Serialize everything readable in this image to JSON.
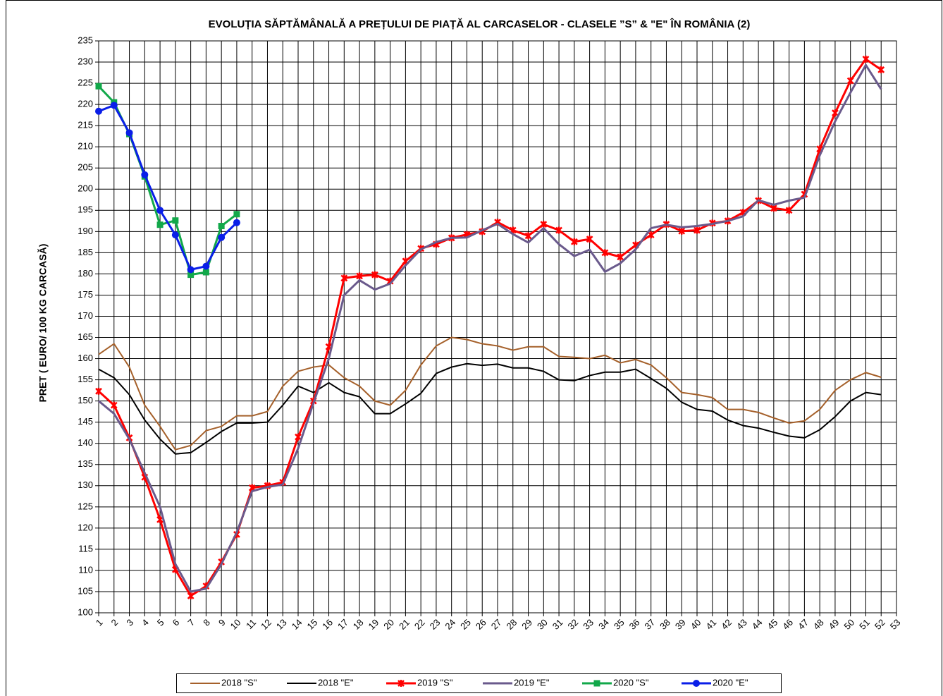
{
  "chart_data": {
    "type": "line",
    "title": "EVOLUȚIA SĂPTĂMÂNALĂ A PREȚULUI  DE PIAȚĂ  AL CARCASELOR  - CLASELE ”S” & \"E\"  ÎN ROMÂNIA (2)",
    "y_label": "PRET ( EURO/ 100 KG CARCASĂ)",
    "x": [
      1,
      2,
      3,
      4,
      5,
      6,
      7,
      8,
      9,
      10,
      11,
      12,
      13,
      14,
      15,
      16,
      17,
      18,
      19,
      20,
      21,
      22,
      23,
      24,
      25,
      26,
      27,
      28,
      29,
      30,
      31,
      32,
      33,
      34,
      35,
      36,
      37,
      38,
      39,
      40,
      41,
      42,
      43,
      44,
      45,
      46,
      47,
      48,
      49,
      50,
      51,
      52
    ],
    "xlim": [
      1,
      53
    ],
    "xticks": [
      1,
      2,
      3,
      4,
      5,
      6,
      7,
      8,
      9,
      10,
      11,
      12,
      13,
      14,
      15,
      16,
      17,
      18,
      19,
      20,
      21,
      22,
      23,
      24,
      25,
      26,
      27,
      28,
      29,
      30,
      31,
      32,
      33,
      34,
      35,
      36,
      37,
      38,
      39,
      40,
      41,
      42,
      43,
      44,
      45,
      46,
      47,
      48,
      49,
      50,
      51,
      52,
      53
    ],
    "ylim": [
      100,
      235
    ],
    "yticks": [
      100,
      105,
      110,
      115,
      120,
      125,
      130,
      135,
      140,
      145,
      150,
      155,
      160,
      165,
      170,
      175,
      180,
      185,
      190,
      195,
      200,
      205,
      210,
      215,
      220,
      225,
      230,
      235
    ],
    "grid": true,
    "series": [
      {
        "name": "2018 \"S\"",
        "color": "#a5602a",
        "marker": "none",
        "values": [
          161,
          163.5,
          158,
          149,
          144,
          138.5,
          139.5,
          143,
          144,
          146.5,
          146.5,
          147.5,
          153.5,
          157,
          158,
          158.5,
          155.5,
          153.5,
          150,
          149,
          152.5,
          158.5,
          163,
          165,
          164.5,
          163.5,
          163,
          162,
          162.8,
          162.8,
          160.5,
          160.3,
          160,
          160.8,
          159,
          159.8,
          158.5,
          155.5,
          152,
          151.5,
          150.8,
          148,
          148,
          147.3,
          146,
          144.8,
          145.3,
          148,
          152.5,
          155,
          156.7,
          155.6
        ]
      },
      {
        "name": "2018 \"E\"",
        "color": "#000000",
        "marker": "none",
        "values": [
          157.5,
          155.5,
          151.5,
          145.5,
          141,
          137.5,
          137.8,
          140.2,
          142.8,
          144.8,
          144.8,
          145,
          149,
          153.5,
          152,
          154.3,
          152,
          151,
          147,
          147,
          149.3,
          151.8,
          156.5,
          158,
          158.8,
          158.4,
          158.7,
          157.8,
          157.8,
          157,
          155,
          154.8,
          156,
          156.8,
          156.8,
          157.5,
          155.3,
          153,
          149.7,
          148,
          147.6,
          145.5,
          144.2,
          143.6,
          142.6,
          141.7,
          141.3,
          143.2,
          146.3,
          150,
          152,
          151.5
        ]
      },
      {
        "name": "2019 \"S\"",
        "color": "#ff0000",
        "marker": "star",
        "values": [
          152.3,
          149,
          141.3,
          132,
          122,
          110.2,
          104,
          106.3,
          112,
          118.5,
          129.5,
          130,
          130.8,
          141.5,
          150,
          162.8,
          179,
          179.5,
          179.8,
          178.3,
          183,
          186,
          187,
          188.5,
          189.3,
          190,
          192.2,
          190.3,
          189,
          191.7,
          190.3,
          187.6,
          188.2,
          185,
          184,
          186.8,
          189.2,
          191.7,
          190.1,
          190.3,
          192,
          192.5,
          194.5,
          197.3,
          195.5,
          195,
          198.8,
          209.5,
          218,
          225.6,
          230.7,
          228.2
        ]
      },
      {
        "name": "2019 \"E\"",
        "color": "#6a5a8c",
        "marker": "none",
        "values": [
          150,
          147,
          141,
          133,
          125,
          111.5,
          105,
          105.7,
          111.5,
          119,
          128.7,
          129.7,
          130.3,
          138.8,
          149.5,
          160,
          175,
          178.5,
          176.3,
          177.7,
          182,
          185.8,
          187.5,
          188.5,
          188.6,
          190.3,
          191.8,
          189.4,
          187.4,
          190.8,
          187,
          184.2,
          185.7,
          180.5,
          182.5,
          185.8,
          190.8,
          191.6,
          191,
          191.3,
          191.8,
          192.5,
          193.6,
          197.4,
          196.3,
          197.3,
          198,
          208,
          216,
          222.8,
          229.3,
          223.6
        ]
      },
      {
        "name": "2020 \"S\"",
        "color": "#12a84a",
        "marker": "square",
        "values": [
          224.3,
          220.5,
          213,
          203,
          191.6,
          192.6,
          179.8,
          180.4,
          191.3,
          194.1,
          null,
          null,
          null,
          null,
          null,
          null,
          null,
          null,
          null,
          null,
          null,
          null,
          null,
          null,
          null,
          null,
          null,
          null,
          null,
          null,
          null,
          null,
          null,
          null,
          null,
          null,
          null,
          null,
          null,
          null,
          null,
          null,
          null,
          null,
          null,
          null,
          null,
          null,
          null,
          null,
          null,
          null
        ]
      },
      {
        "name": "2020 \"E\"",
        "color": "#0a1ee8",
        "marker": "circle",
        "values": [
          218.4,
          219.8,
          213.3,
          203.4,
          195,
          189.2,
          181,
          181.8,
          188.6,
          192.1,
          null,
          null,
          null,
          null,
          null,
          null,
          null,
          null,
          null,
          null,
          null,
          null,
          null,
          null,
          null,
          null,
          null,
          null,
          null,
          null,
          null,
          null,
          null,
          null,
          null,
          null,
          null,
          null,
          null,
          null,
          null,
          null,
          null,
          null,
          null,
          null,
          null,
          null,
          null,
          null,
          null,
          null
        ]
      }
    ]
  }
}
